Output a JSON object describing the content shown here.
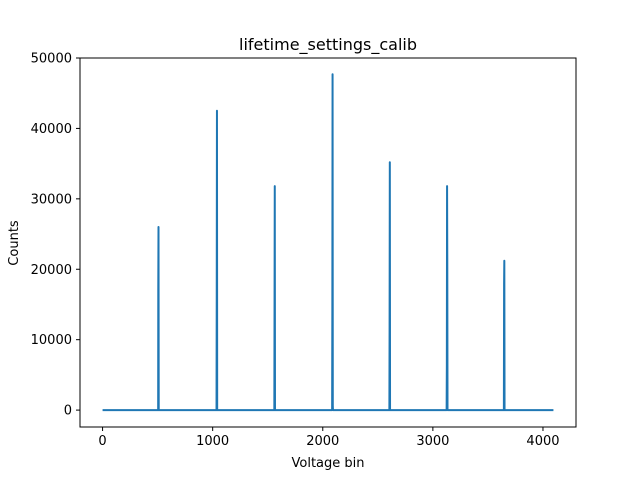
{
  "chart_data": {
    "type": "line",
    "title": "lifetime_settings_calib",
    "xlabel": "Voltage bin",
    "ylabel": "Counts",
    "xlim": [
      -205,
      4300
    ],
    "ylim": [
      -2400,
      50000
    ],
    "xticks": [
      0,
      1000,
      2000,
      3000,
      4000
    ],
    "yticks": [
      0,
      10000,
      20000,
      30000,
      40000,
      50000
    ],
    "grid": false,
    "legend": "none",
    "color": "#1f77b4",
    "series": [
      {
        "x": [
          0,
          505,
          508,
          510,
          512,
          514,
          4095
        ],
        "y": [
          0,
          0,
          17000,
          26000,
          17000,
          0,
          0
        ],
        "segments": [
          {
            "x": [
              0,
              505,
              506,
              508,
              510,
              512,
              513,
              515,
              1035,
              1037,
              1039,
              1041,
              1043,
              1045,
              1560,
              1562,
              1564,
              1566,
              1568,
              1570,
              2085,
              2087,
              2089,
              2091,
              2093,
              2095,
              2605,
              2607,
              2609,
              2611,
              2613,
              2615,
              3125,
              3127,
              3129,
              3131,
              3133,
              3135,
              3137,
              3645,
              3647,
              3649,
              3651,
              3653,
              3655,
              4095
            ],
            "y": [
              0,
              0,
              17000,
              26000,
              0,
              0,
              0,
              0,
              0,
              16500,
              42500,
              0,
              0,
              0,
              0,
              15000,
              31800,
              0,
              0,
              0,
              0,
              14500,
              47700,
              500,
              0,
              0,
              0,
              12000,
              35200,
              0,
              0,
              0,
              0,
              6500,
              31800,
              21000,
              0,
              0,
              0,
              0,
              18000,
              21200,
              0,
              0,
              0,
              0
            ]
          }
        ]
      }
    ],
    "peaks": [
      {
        "x": 510,
        "y": 26000
      },
      {
        "x": 1039,
        "y": 42500
      },
      {
        "x": 1564,
        "y": 31800
      },
      {
        "x": 2089,
        "y": 47700
      },
      {
        "x": 2609,
        "y": 35200
      },
      {
        "x": 3129,
        "y": 31800
      },
      {
        "x": 3649,
        "y": 21200
      }
    ]
  }
}
